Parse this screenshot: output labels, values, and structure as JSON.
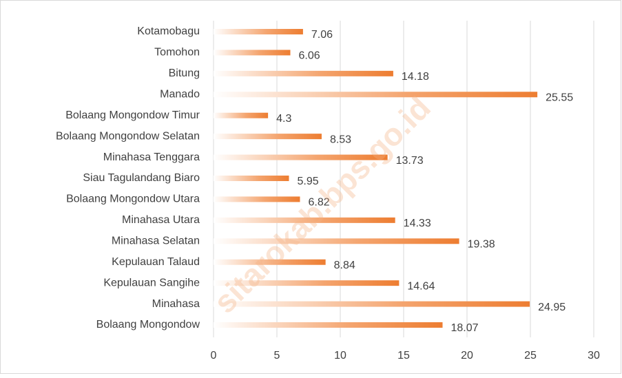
{
  "chart_data": {
    "type": "bar",
    "orientation": "horizontal",
    "categories": [
      "Kotamobagu",
      "Tomohon",
      "Bitung",
      "Manado",
      "Bolaang Mongondow Timur",
      "Bolaang Mongondow Selatan",
      "Minahasa Tenggara",
      "Siau Tagulandang Biaro",
      "Bolaang Mongondow Utara",
      "Minahasa Utara",
      "Minahasa Selatan",
      "Kepulauan Talaud",
      "Kepulauan Sangihe",
      "Minahasa",
      "Bolaang Mongondow"
    ],
    "values": [
      7.06,
      6.06,
      14.18,
      25.55,
      4.3,
      8.53,
      13.73,
      5.95,
      6.82,
      14.33,
      19.38,
      8.84,
      14.64,
      24.95,
      18.07
    ],
    "color": "#ed7d31",
    "xlim": [
      0,
      30
    ],
    "xticks": [
      0,
      5,
      10,
      15,
      20,
      25,
      30
    ],
    "grid": true,
    "watermark": "sitarokab.bps.go.id"
  }
}
